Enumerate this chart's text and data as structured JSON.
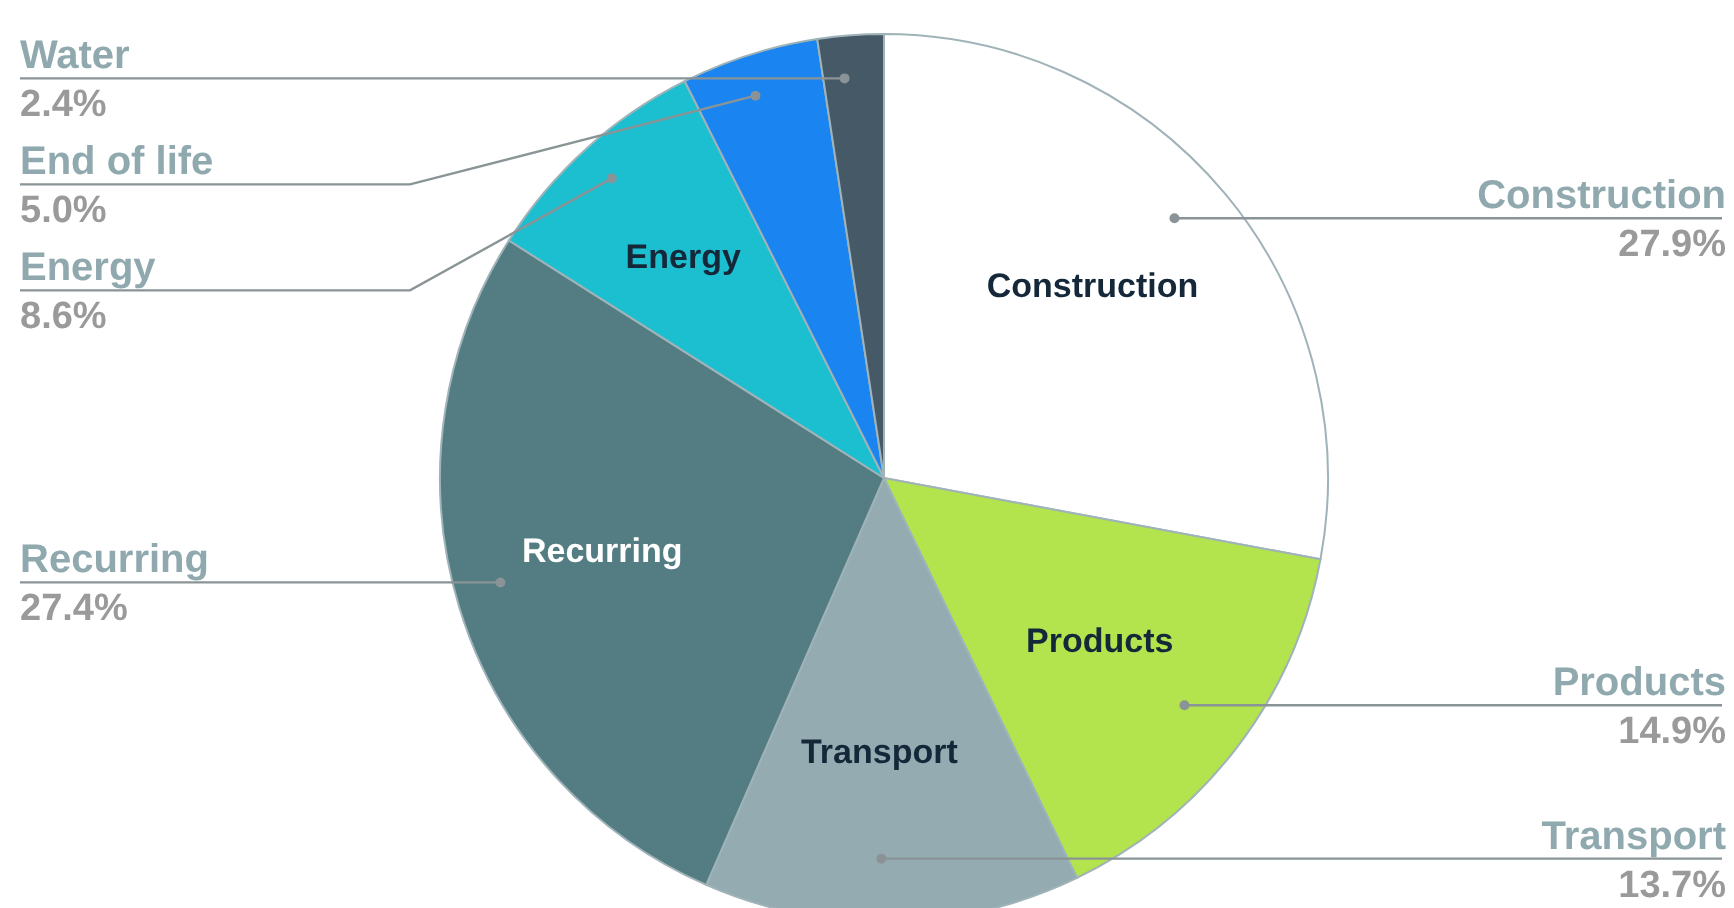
{
  "chart_data": {
    "type": "pie",
    "categories": [
      "Construction",
      "Products",
      "Transport",
      "Recurring",
      "Energy",
      "End of life",
      "Water"
    ],
    "values": [
      27.9,
      14.9,
      13.7,
      27.4,
      8.6,
      5.0,
      2.4
    ],
    "value_labels": [
      "27.9%",
      "14.9%",
      "13.7%",
      "27.4%",
      "8.6%",
      "5.0%",
      "2.4%"
    ],
    "colors": [
      "#ffffff",
      "#b3e34d",
      "#93abb1",
      "#537d82",
      "#1cbfcf",
      "#1a84f0",
      "#455a66"
    ]
  }
}
